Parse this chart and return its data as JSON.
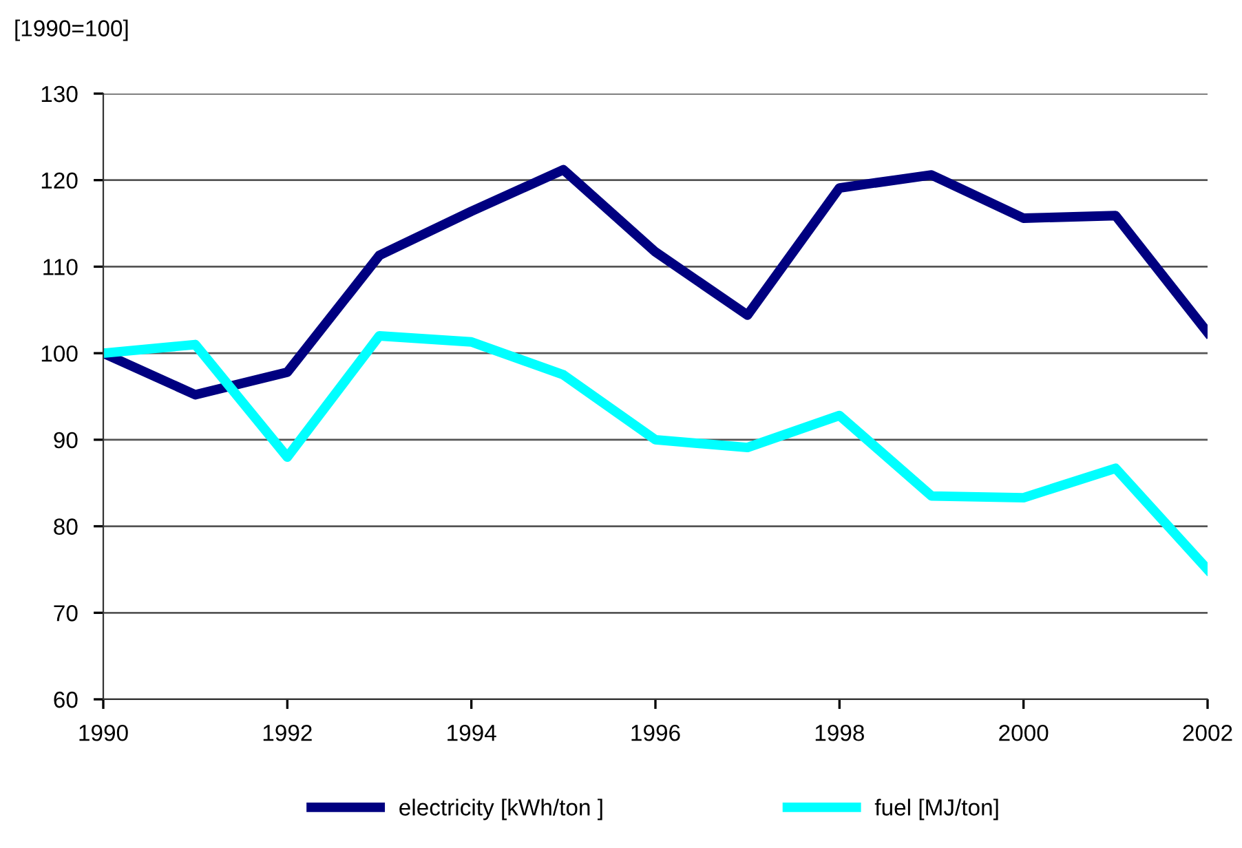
{
  "chart_data": {
    "type": "line",
    "title": "[1990=100]",
    "x": [
      1990,
      1991,
      1992,
      1993,
      1994,
      1995,
      1996,
      1997,
      1998,
      1999,
      2000,
      2001,
      2002
    ],
    "series": [
      {
        "name": "electricity [kWh/ton ]",
        "color": "#000080",
        "values": [
          100,
          95.2,
          97.8,
          111.3,
          116.4,
          121.2,
          111.7,
          104.4,
          119.1,
          120.6,
          115.6,
          115.9,
          102.4
        ]
      },
      {
        "name": "fuel [MJ/ton]",
        "color": "#00ffff",
        "values": [
          100,
          101.0,
          88.0,
          102.0,
          101.3,
          97.5,
          90.0,
          89.1,
          92.8,
          83.5,
          83.3,
          86.7,
          75.0
        ]
      }
    ],
    "xlim": [
      1990,
      2002
    ],
    "xticks": [
      1990,
      1992,
      1994,
      1996,
      1998,
      2000,
      2002
    ],
    "ylim": [
      60,
      130
    ],
    "yticks": [
      60,
      70,
      80,
      90,
      100,
      110,
      120,
      130
    ],
    "grid": "y",
    "legend": "bottom",
    "marker": "none",
    "line_style": "solid"
  }
}
